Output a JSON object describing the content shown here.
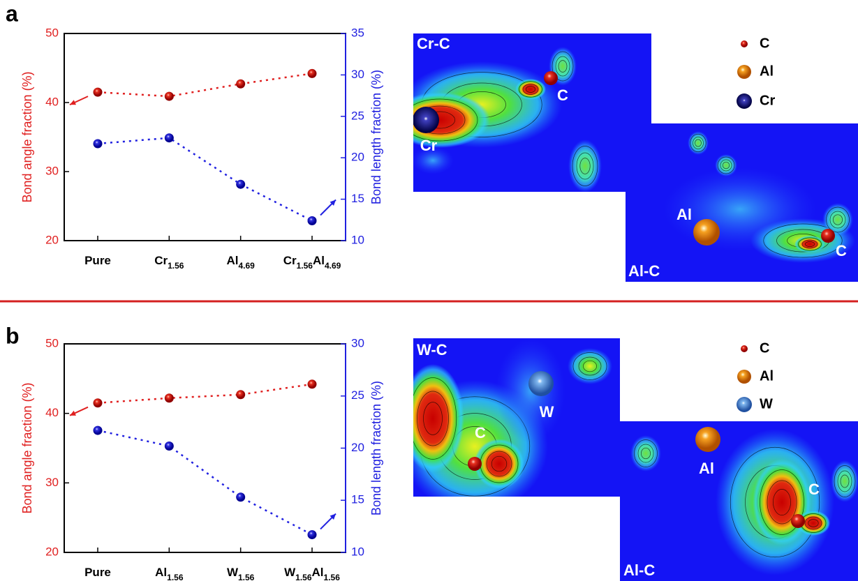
{
  "panel_labels": [
    "a",
    "b"
  ],
  "chart_data": [
    {
      "type": "line",
      "categories": [
        "Pure",
        "Cr1.56",
        "Al4.69",
        "Cr1.56Al4.69"
      ],
      "y_label": "Bond angle fraction (%)",
      "y2_label": "Bond length fraction (%)",
      "ylim": [
        20,
        50
      ],
      "yticks": [
        20,
        30,
        40,
        50
      ],
      "y2lim": [
        10,
        35
      ],
      "y2ticks": [
        10,
        15,
        20,
        25,
        30,
        35
      ],
      "series": [
        {
          "color": "#e02020",
          "values": [
            41.5,
            40.9,
            42.7,
            44.2
          ]
        },
        {
          "color": "#2020e0",
          "axis": "y2",
          "values": [
            21.7,
            22.4,
            16.8,
            12.4
          ]
        }
      ]
    },
    {
      "type": "line",
      "categories": [
        "Pure",
        "Al1.56",
        "W1.56",
        "W1.56Al1.56"
      ],
      "y_label": "Bond angle fraction (%)",
      "y2_label": "Bond length fraction (%)",
      "ylim": [
        20,
        50
      ],
      "yticks": [
        20,
        30,
        40,
        50
      ],
      "y2lim": [
        10,
        30
      ],
      "y2ticks": [
        10,
        15,
        20,
        25,
        30
      ],
      "series": [
        {
          "color": "#e02020",
          "values": [
            41.5,
            42.2,
            42.7,
            44.2
          ]
        },
        {
          "color": "#2020e0",
          "axis": "y2",
          "values": [
            21.7,
            20.2,
            15.3,
            11.7
          ]
        }
      ]
    }
  ],
  "density_maps": [
    {
      "panels": [
        {
          "title": "Cr-C",
          "atoms": [
            "C",
            "Cr"
          ]
        },
        {
          "title": "Al-C",
          "atoms": [
            "Al",
            "C"
          ]
        }
      ],
      "legend": [
        "C",
        "Al",
        "Cr"
      ]
    },
    {
      "panels": [
        {
          "title": "W-C",
          "atoms": [
            "C",
            "W"
          ]
        },
        {
          "title": "Al-C",
          "atoms": [
            "Al",
            "C"
          ]
        }
      ],
      "legend": [
        "C",
        "Al",
        "W"
      ]
    }
  ]
}
